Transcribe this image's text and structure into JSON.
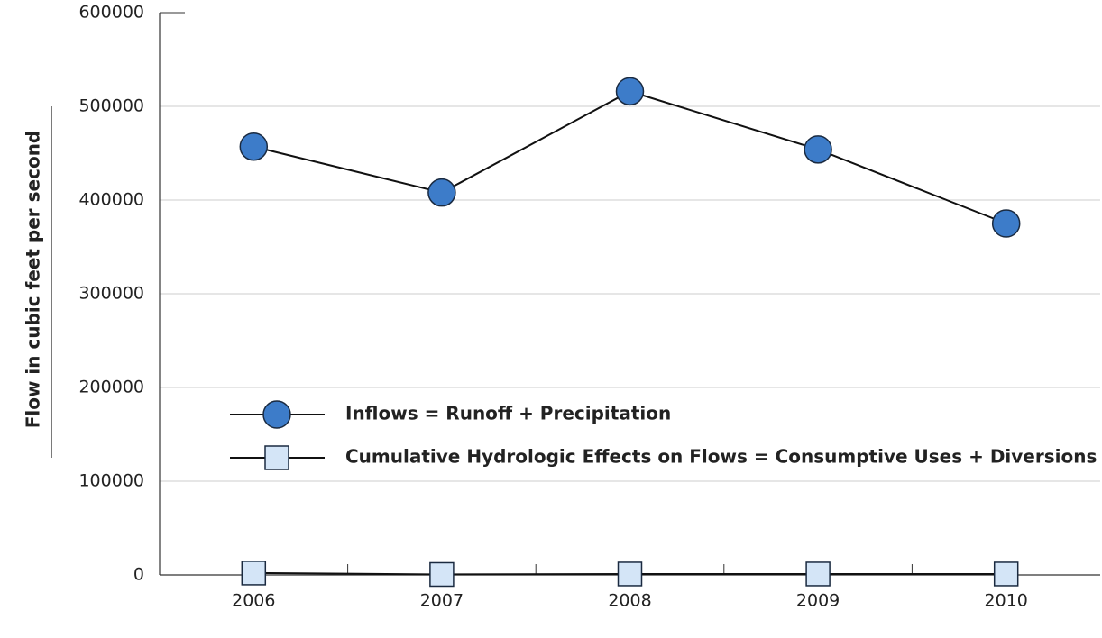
{
  "chart_data": {
    "type": "line",
    "y_label": "Flow in cubic feet per second",
    "categories": [
      "2006",
      "2007",
      "2008",
      "2009",
      "2010"
    ],
    "series": [
      {
        "name": "Inflows = Runoff + Precipitation",
        "color": "#3d7cc9",
        "marker": "circle",
        "values": [
          457000,
          408000,
          516000,
          454000,
          375000
        ]
      },
      {
        "name": "Cumulative Hydrologic Effects on Flows = Consumptive Uses + Diversions",
        "color": "#d4e5f7",
        "marker": "square",
        "values": [
          2000,
          500,
          1000,
          1000,
          1000
        ]
      }
    ],
    "ylim": [
      0,
      600000
    ],
    "yticks": [
      0,
      100000,
      200000,
      300000,
      400000,
      500000,
      600000
    ],
    "grid": true
  }
}
